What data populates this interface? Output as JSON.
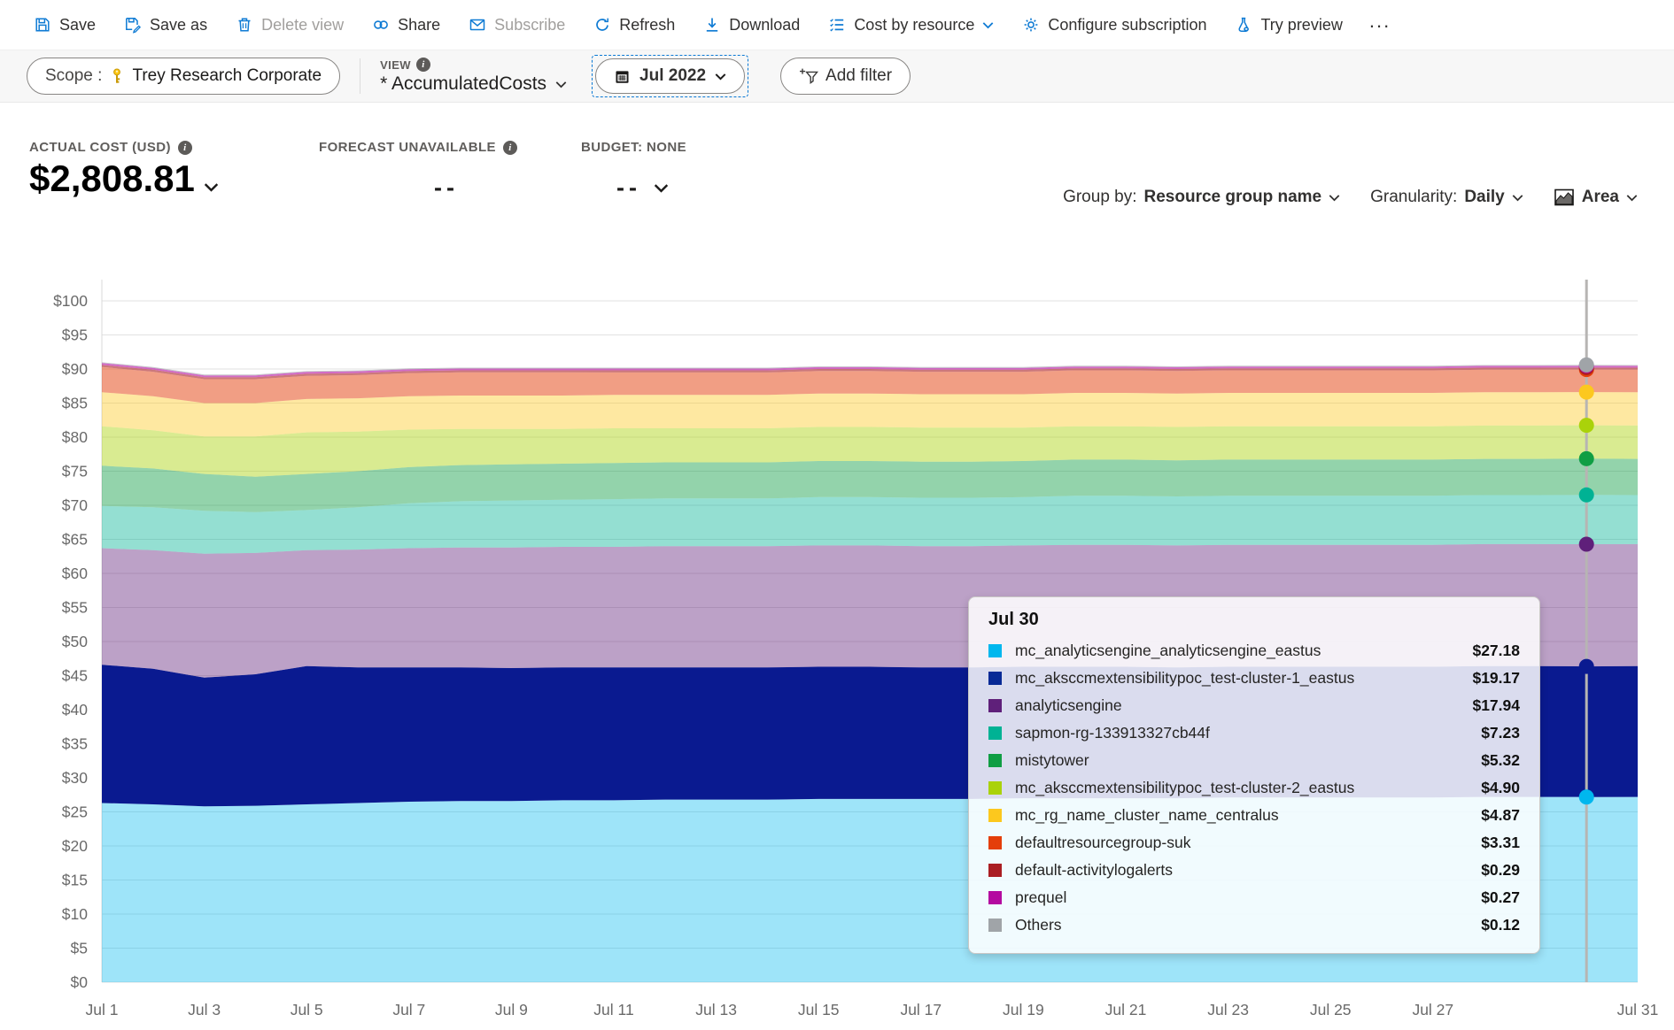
{
  "toolbar": {
    "items": [
      {
        "label": "Save",
        "icon": "save-icon",
        "disabled": false
      },
      {
        "label": "Save as",
        "icon": "save-as-icon",
        "disabled": false
      },
      {
        "label": "Delete view",
        "icon": "trash-icon",
        "disabled": true
      },
      {
        "label": "Share",
        "icon": "share-icon",
        "disabled": false
      },
      {
        "label": "Subscribe",
        "icon": "mail-icon",
        "disabled": true
      },
      {
        "label": "Refresh",
        "icon": "refresh-icon",
        "disabled": false
      },
      {
        "label": "Download",
        "icon": "download-icon",
        "disabled": false
      },
      {
        "label": "Cost by resource",
        "icon": "list-icon",
        "disabled": false,
        "has_chevron": true
      },
      {
        "label": "Configure subscription",
        "icon": "gear-icon",
        "disabled": false
      },
      {
        "label": "Try preview",
        "icon": "flask-icon",
        "disabled": false
      }
    ],
    "more_label": "..."
  },
  "filter_bar": {
    "scope_label": "Scope :",
    "scope_value": "Trey Research Corporate",
    "view_caption": "VIEW",
    "view_value": "* AccumulatedCosts",
    "date_range": "Jul 2022",
    "add_filter_label": "Add filter"
  },
  "kpis": {
    "actual": {
      "label": "ACTUAL COST (USD)",
      "value": "$2,808.81"
    },
    "forecast": {
      "label": "FORECAST UNAVAILABLE",
      "value": "--"
    },
    "budget": {
      "label": "BUDGET: NONE",
      "value": "--"
    }
  },
  "controls": {
    "group_by_label": "Group by:",
    "group_by_value": "Resource group name",
    "granularity_label": "Granularity:",
    "granularity_value": "Daily",
    "chart_type_value": "Area"
  },
  "tooltip": {
    "title": "Jul 30",
    "rows": [
      {
        "name": "mc_analyticsengine_analyticsengine_eastus",
        "value": "$27.18",
        "color": "#00b7ee"
      },
      {
        "name": "mc_aksccmextensibilitypoc_test-cluster-1_eastus",
        "value": "$19.17",
        "color": "#082a96"
      },
      {
        "name": "analyticsengine",
        "value": "$17.94",
        "color": "#5f207a"
      },
      {
        "name": "sapmon-rg-133913327cb44f",
        "value": "$7.23",
        "color": "#00b294"
      },
      {
        "name": "mistytower",
        "value": "$5.32",
        "color": "#109e44"
      },
      {
        "name": "mc_aksccmextensibilitypoc_test-cluster-2_eastus",
        "value": "$4.90",
        "color": "#aad20a"
      },
      {
        "name": "mc_rg_name_cluster_name_centralus",
        "value": "$4.87",
        "color": "#fcc81e"
      },
      {
        "name": "defaultresourcegroup-suk",
        "value": "$3.31",
        "color": "#e43e0a"
      },
      {
        "name": "default-activitylogalerts",
        "value": "$0.29",
        "color": "#aa1e23"
      },
      {
        "name": "prequel",
        "value": "$0.27",
        "color": "#b40aa0"
      },
      {
        "name": "Others",
        "value": "$0.12",
        "color": "#a0a4a8"
      }
    ]
  },
  "chart_data": {
    "type": "area",
    "stacked": true,
    "title": "Accumulated costs by resource group name, daily, Jul 2022",
    "ylim": [
      0,
      100
    ],
    "ytick_step": 5,
    "ytick_prefix": "$",
    "grid": true,
    "x_days": 31,
    "x_tick_labels": [
      "Jul 1",
      "Jul 3",
      "Jul 5",
      "Jul 7",
      "Jul 9",
      "Jul 11",
      "Jul 13",
      "Jul 15",
      "Jul 17",
      "Jul 19",
      "Jul 21",
      "Jul 23",
      "Jul 25",
      "Jul 27",
      "Jul 31"
    ],
    "x_tick_days": [
      1,
      3,
      5,
      7,
      9,
      11,
      13,
      15,
      17,
      19,
      21,
      23,
      25,
      27,
      31
    ],
    "hover_day": 30,
    "series": [
      {
        "name": "mc_analyticsengine_analyticsengine_eastus",
        "color": "#00b7ee",
        "fill_alpha": 0.38,
        "values": [
          26.3,
          26.1,
          25.8,
          25.9,
          26.1,
          26.3,
          26.5,
          26.6,
          26.6,
          26.7,
          26.7,
          26.8,
          26.8,
          26.8,
          26.9,
          26.9,
          26.9,
          26.9,
          27.0,
          27.0,
          27.0,
          27.0,
          27.1,
          27.1,
          27.1,
          27.1,
          27.1,
          27.2,
          27.2,
          27.18,
          27.2
        ]
      },
      {
        "name": "mc_aksccmextensibilitypoc_test-cluster-1_eastus",
        "color": "#0a1a90",
        "fill_alpha": 1.0,
        "values": [
          20.3,
          19.9,
          18.9,
          19.3,
          20.3,
          19.9,
          19.7,
          19.6,
          19.5,
          19.5,
          19.5,
          19.4,
          19.4,
          19.4,
          19.4,
          19.4,
          19.3,
          19.3,
          19.3,
          19.3,
          19.3,
          19.2,
          19.2,
          19.2,
          19.2,
          19.2,
          19.2,
          19.2,
          19.2,
          19.17,
          19.2
        ]
      },
      {
        "name": "analyticsengine",
        "color": "#5f207a",
        "fill_alpha": 0.42,
        "values": [
          17.1,
          17.4,
          18.2,
          17.8,
          17.0,
          17.3,
          17.5,
          17.6,
          17.7,
          17.7,
          17.7,
          17.8,
          17.8,
          17.8,
          17.8,
          17.8,
          17.8,
          17.8,
          17.8,
          17.9,
          17.9,
          17.9,
          17.9,
          17.9,
          17.9,
          17.9,
          17.9,
          17.9,
          17.9,
          17.94,
          17.9
        ]
      },
      {
        "name": "sapmon-rg-133913327cb44f",
        "color": "#00b294",
        "fill_alpha": 0.42,
        "values": [
          6.2,
          6.3,
          6.3,
          6.0,
          5.9,
          6.2,
          6.6,
          6.8,
          6.9,
          6.9,
          7.0,
          7.0,
          7.0,
          7.0,
          7.1,
          7.1,
          7.1,
          7.1,
          7.1,
          7.2,
          7.2,
          7.2,
          7.2,
          7.2,
          7.2,
          7.2,
          7.2,
          7.2,
          7.2,
          7.23,
          7.2
        ]
      },
      {
        "name": "mistytower",
        "color": "#109e44",
        "fill_alpha": 0.45,
        "values": [
          5.9,
          5.7,
          5.4,
          5.2,
          5.3,
          5.3,
          5.3,
          5.3,
          5.3,
          5.3,
          5.3,
          5.3,
          5.3,
          5.3,
          5.3,
          5.3,
          5.3,
          5.3,
          5.3,
          5.3,
          5.3,
          5.3,
          5.3,
          5.3,
          5.3,
          5.3,
          5.3,
          5.3,
          5.3,
          5.32,
          5.3
        ]
      },
      {
        "name": "mc_aksccmextensibilitypoc_test-cluster-2_eastus",
        "color": "#aad20a",
        "fill_alpha": 0.45,
        "values": [
          5.8,
          5.6,
          5.5,
          5.9,
          6.1,
          5.8,
          5.5,
          5.3,
          5.2,
          5.1,
          5.1,
          5.0,
          5.0,
          5.0,
          5.0,
          5.0,
          5.0,
          5.0,
          4.9,
          4.9,
          4.9,
          4.9,
          4.9,
          4.9,
          4.9,
          4.9,
          4.9,
          4.9,
          4.9,
          4.9,
          4.9
        ]
      },
      {
        "name": "mc_rg_name_cluster_name_centralus",
        "color": "#fcc81e",
        "fill_alpha": 0.42,
        "values": [
          5.0,
          5.0,
          4.9,
          4.9,
          4.9,
          4.9,
          4.9,
          4.9,
          4.9,
          4.9,
          4.9,
          4.9,
          4.9,
          4.9,
          4.9,
          4.9,
          4.9,
          4.9,
          4.9,
          4.9,
          4.9,
          4.9,
          4.9,
          4.9,
          4.9,
          4.9,
          4.9,
          4.9,
          4.9,
          4.87,
          4.9
        ]
      },
      {
        "name": "defaultresourcegroup-suk",
        "color": "#e43e0a",
        "fill_alpha": 0.5,
        "values": [
          3.7,
          3.6,
          3.5,
          3.5,
          3.4,
          3.4,
          3.4,
          3.4,
          3.4,
          3.4,
          3.3,
          3.3,
          3.3,
          3.3,
          3.3,
          3.3,
          3.3,
          3.3,
          3.3,
          3.3,
          3.3,
          3.3,
          3.3,
          3.3,
          3.3,
          3.3,
          3.3,
          3.3,
          3.3,
          3.31,
          3.3
        ]
      },
      {
        "name": "default-activitylogalerts",
        "color": "#aa1e23",
        "fill_alpha": 0.6,
        "values": [
          0.3,
          0.3,
          0.3,
          0.3,
          0.3,
          0.3,
          0.3,
          0.3,
          0.3,
          0.3,
          0.3,
          0.3,
          0.3,
          0.3,
          0.3,
          0.3,
          0.3,
          0.3,
          0.3,
          0.3,
          0.3,
          0.3,
          0.3,
          0.3,
          0.3,
          0.3,
          0.3,
          0.3,
          0.3,
          0.29,
          0.3
        ]
      },
      {
        "name": "prequel",
        "color": "#b40aa0",
        "fill_alpha": 0.6,
        "values": [
          0.27,
          0.27,
          0.27,
          0.27,
          0.27,
          0.27,
          0.27,
          0.27,
          0.27,
          0.27,
          0.27,
          0.27,
          0.27,
          0.27,
          0.27,
          0.27,
          0.27,
          0.27,
          0.27,
          0.27,
          0.27,
          0.27,
          0.27,
          0.27,
          0.27,
          0.27,
          0.27,
          0.27,
          0.27,
          0.27,
          0.27
        ]
      },
      {
        "name": "Others",
        "color": "#a0a4a8",
        "fill_alpha": 0.6,
        "values": [
          0.12,
          0.12,
          0.12,
          0.12,
          0.12,
          0.12,
          0.12,
          0.12,
          0.12,
          0.12,
          0.12,
          0.12,
          0.12,
          0.12,
          0.12,
          0.12,
          0.12,
          0.12,
          0.12,
          0.12,
          0.12,
          0.12,
          0.12,
          0.12,
          0.12,
          0.12,
          0.12,
          0.12,
          0.12,
          0.12,
          0.12
        ]
      }
    ]
  }
}
